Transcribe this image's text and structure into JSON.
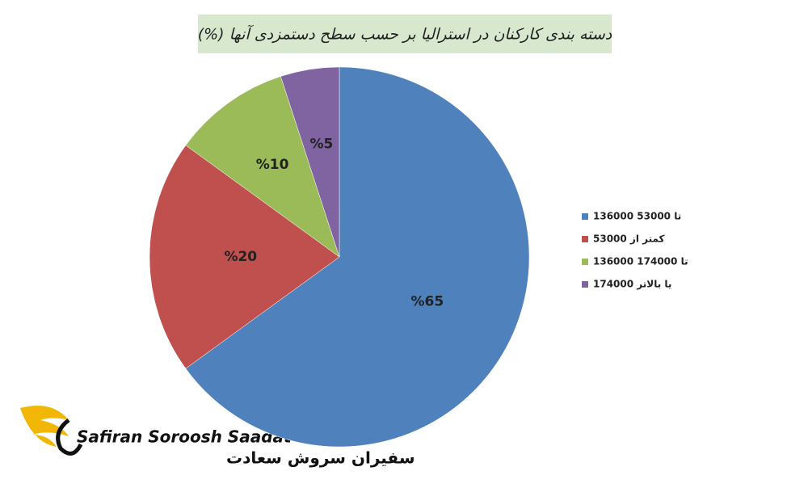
{
  "chart_data": {
    "type": "pie",
    "title": "دسته بندی کارکنان در استرالیا بر حسب سطح دستمزدی آنها (%)",
    "categories": [
      "136000 تا 53000",
      "کمتر از 53000",
      "136000 تا 174000",
      "174000 یا بالاتر"
    ],
    "values": [
      65,
      20,
      10,
      5
    ],
    "value_labels": [
      "%65",
      "%20",
      "%10",
      "%5"
    ],
    "colors": [
      "#4f81bd",
      "#c0504d",
      "#9bbb59",
      "#8064a2"
    ],
    "legend": "right"
  },
  "logo": {
    "latin": "Safiran Soroosh Saadat",
    "persian": "سفیران سروش سعادت"
  }
}
